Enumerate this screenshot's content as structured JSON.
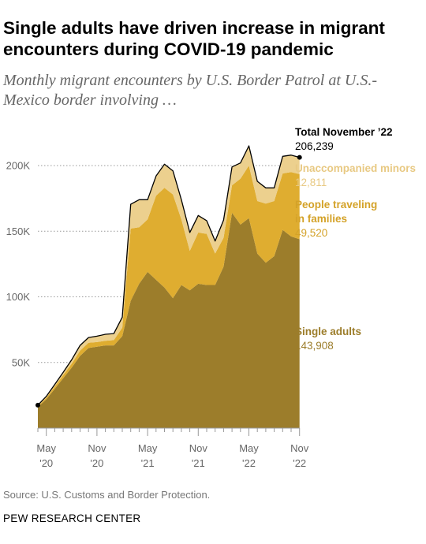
{
  "title": "Single adults have driven increase in migrant encounters during COVID-19 pandemic",
  "subtitle": "Monthly migrant encounters by U.S. Border Patrol at U.S.-Mexico border involving …",
  "source": "Source: U.S. Customs and Border Protection.",
  "brand": "PEW RESEARCH CENTER",
  "colors": {
    "single_adults": "#9c7d2b",
    "families": "#dfad30",
    "minors": "#ecd08e",
    "total_line": "#000000",
    "grid": "#999999",
    "axis_text": "#666666"
  },
  "chart_data": {
    "type": "area",
    "stacked": true,
    "x_tick_labels": [
      {
        "month": "May",
        "year": "'20"
      },
      {
        "month": "Nov",
        "year": "'20"
      },
      {
        "month": "May",
        "year": "'21"
      },
      {
        "month": "Nov",
        "year": "'21"
      },
      {
        "month": "May",
        "year": "'22"
      },
      {
        "month": "Nov",
        "year": "'22"
      }
    ],
    "x": [
      "Apr '20",
      "May '20",
      "Jun '20",
      "Jul '20",
      "Aug '20",
      "Sep '20",
      "Oct '20",
      "Nov '20",
      "Dec '20",
      "Jan '21",
      "Feb '21",
      "Mar '21",
      "Apr '21",
      "May '21",
      "Jun '21",
      "Jul '21",
      "Aug '21",
      "Sep '21",
      "Oct '21",
      "Nov '21",
      "Dec '21",
      "Jan '22",
      "Feb '22",
      "Mar '22",
      "Apr '22",
      "May '22",
      "Jun '22",
      "Jul '22",
      "Aug '22",
      "Sep '22",
      "Oct '22",
      "Nov '22"
    ],
    "ylim": [
      0,
      220000
    ],
    "y_ticks": [
      50000,
      100000,
      150000,
      200000
    ],
    "y_tick_labels": [
      "50K",
      "100K",
      "150K",
      "200K"
    ],
    "grid": "horizontal dotted",
    "series": [
      {
        "name": "Single adults",
        "values": [
          16000,
          22000,
          30000,
          38000,
          46000,
          55000,
          61000,
          62000,
          63000,
          63000,
          70000,
          97000,
          110000,
          119000,
          113000,
          107000,
          99000,
          109000,
          105000,
          110000,
          109000,
          109000,
          123000,
          164000,
          155000,
          160000,
          133000,
          126000,
          131000,
          151000,
          146000,
          143908
        ]
      },
      {
        "name": "People traveling in families",
        "values": [
          700,
          1200,
          1800,
          2500,
          3000,
          4000,
          4000,
          3500,
          3500,
          4000,
          6500,
          55000,
          43000,
          40000,
          64000,
          76000,
          79000,
          50000,
          30000,
          39000,
          39000,
          24000,
          22000,
          21000,
          35000,
          40000,
          40000,
          45000,
          42000,
          43000,
          49000,
          49520
        ]
      },
      {
        "name": "Unaccompanied minors",
        "values": [
          800,
          1000,
          1500,
          2000,
          3000,
          4000,
          4000,
          4500,
          5000,
          5000,
          8000,
          18500,
          21000,
          15000,
          15000,
          18000,
          18000,
          15000,
          14000,
          13000,
          10000,
          9500,
          13500,
          14000,
          12000,
          15000,
          15000,
          12000,
          10000,
          13000,
          13000,
          12811
        ]
      }
    ],
    "annotations": {
      "total": {
        "label": "Total November ’22",
        "value": "206,239"
      },
      "minors": {
        "label": "Unaccompanied minors",
        "value": "12,811"
      },
      "families": {
        "label_line1": "People traveling",
        "label_line2": "in families",
        "value": "49,520"
      },
      "adults": {
        "label": "Single adults",
        "value": "143,908"
      }
    }
  }
}
